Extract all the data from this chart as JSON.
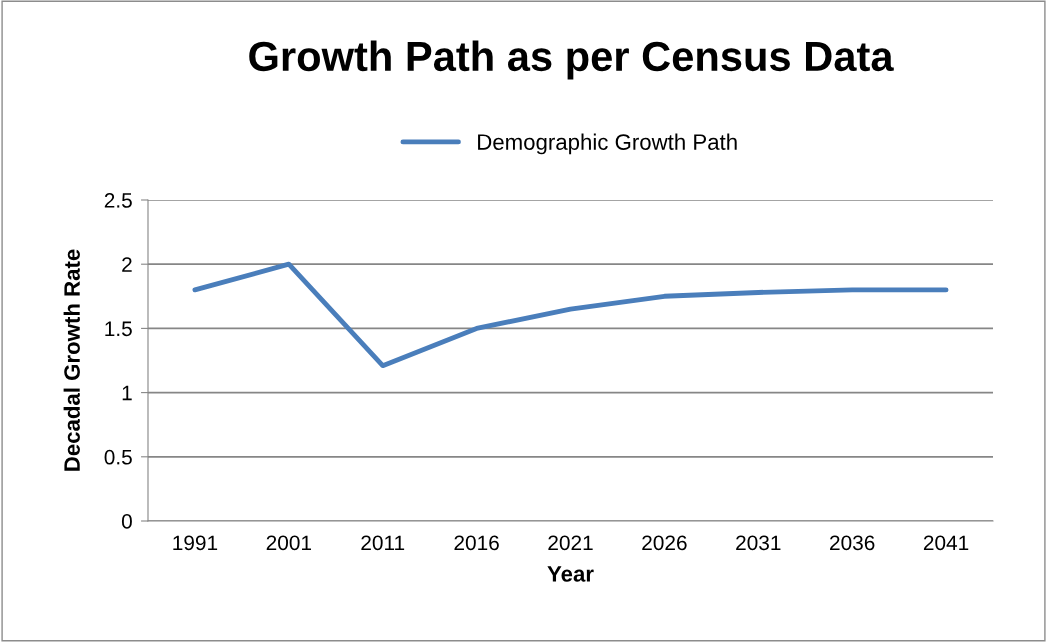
{
  "chart_data": {
    "type": "line",
    "title": "Growth Path as per Census Data",
    "xlabel": "Year",
    "ylabel": "Decadal Growth Rate",
    "categories": [
      "1991",
      "2001",
      "2011",
      "2016",
      "2021",
      "2026",
      "2031",
      "2036",
      "2041"
    ],
    "series": [
      {
        "name": "Demographic Growth Path",
        "color": "#4a7ebb",
        "values": [
          1.8,
          2.0,
          1.21,
          1.5,
          1.65,
          1.75,
          1.78,
          1.8,
          1.8
        ]
      }
    ],
    "ylim": [
      0,
      2.5
    ],
    "yticks": [
      0,
      0.5,
      1,
      1.5,
      2,
      2.5
    ],
    "grid": "y",
    "legend": "top",
    "marker": "none",
    "line_style": "solid"
  }
}
